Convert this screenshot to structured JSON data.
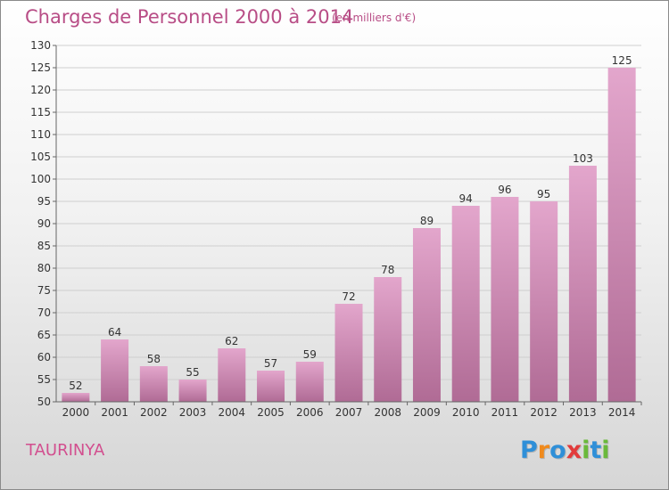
{
  "title": "Charges de Personnel 2000 à 2014",
  "subtitle": "(en milliers d'€)",
  "commune": "TAURINYA",
  "brand": {
    "letters": [
      "P",
      "r",
      "o",
      "x",
      "i",
      "t",
      "i"
    ],
    "colors": [
      "#2f8fd8",
      "#f08a1c",
      "#2f8fd8",
      "#e23b3b",
      "#6ab93b",
      "#2f8fd8",
      "#6ab93b"
    ]
  },
  "colors": {
    "bar_top": "#e3a6cc",
    "bar_bottom": "#b06b95",
    "grid": "#cfcfcf",
    "axis": "#666666",
    "title": "#b84d86"
  },
  "chart_data": {
    "type": "bar",
    "categories": [
      "2000",
      "2001",
      "2002",
      "2003",
      "2004",
      "2005",
      "2006",
      "2007",
      "2008",
      "2009",
      "2010",
      "2011",
      "2012",
      "2013",
      "2014"
    ],
    "values": [
      52,
      64,
      58,
      55,
      62,
      57,
      59,
      72,
      78,
      89,
      94,
      96,
      95,
      103,
      125
    ],
    "ylim": [
      50,
      130
    ],
    "yticks": [
      50,
      55,
      60,
      65,
      70,
      75,
      80,
      85,
      90,
      95,
      100,
      105,
      110,
      115,
      120,
      125,
      130
    ],
    "grid": true,
    "data_labels": true
  }
}
